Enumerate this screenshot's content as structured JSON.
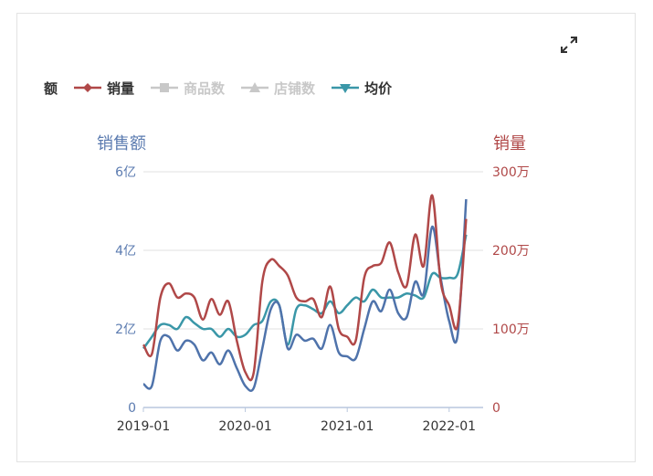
{
  "legend": {
    "partial_label": "额",
    "items": [
      {
        "label": "销量",
        "color": "#b04848",
        "active": true
      },
      {
        "label": "商品数",
        "color": "#c8c8c8",
        "active": false
      },
      {
        "label": "店铺数",
        "color": "#c8c8c8",
        "active": false
      },
      {
        "label": "均价",
        "color": "#3a97a8",
        "active": true
      }
    ]
  },
  "expand_icon": "expand-icon",
  "colors": {
    "sales_amount": "#4f73ab",
    "sales_volume": "#b04848",
    "avg_price": "#3a97a8",
    "grid": "#e0e0e0",
    "left_axis": "#5b7bb0",
    "right_axis": "#b04848"
  },
  "chart_data": {
    "type": "line",
    "ylabel": "销售额",
    "y2label": "销量",
    "xlim": [
      0,
      40
    ],
    "ylim": [
      0,
      6
    ],
    "y2lim": [
      0,
      300
    ],
    "x_ticks": [
      {
        "x": 0,
        "label": "2019-01"
      },
      {
        "x": 12,
        "label": "2020-01"
      },
      {
        "x": 24,
        "label": "2021-01"
      },
      {
        "x": 36,
        "label": "2022-01"
      }
    ],
    "y_ticks": [
      {
        "value": 0,
        "label": "0"
      },
      {
        "value": 2,
        "label": "2亿"
      },
      {
        "value": 4,
        "label": "4亿"
      },
      {
        "value": 6,
        "label": "6亿"
      }
    ],
    "y2_ticks": [
      {
        "value": 0,
        "label": "0"
      },
      {
        "value": 100,
        "label": "100万"
      },
      {
        "value": 200,
        "label": "200万"
      },
      {
        "value": 300,
        "label": "300万"
      }
    ],
    "grid": true,
    "series": [
      {
        "key": "sales_amount",
        "axis": "left",
        "values": [
          0.6,
          0.55,
          1.7,
          1.8,
          1.45,
          1.7,
          1.6,
          1.2,
          1.4,
          1.1,
          1.45,
          1.0,
          0.55,
          0.5,
          1.5,
          2.5,
          2.6,
          1.5,
          1.85,
          1.7,
          1.75,
          1.5,
          2.1,
          1.4,
          1.3,
          1.25,
          2.0,
          2.7,
          2.45,
          3.0,
          2.4,
          2.3,
          3.2,
          2.9,
          4.6,
          3.3,
          2.2,
          1.85,
          5.3
        ]
      },
      {
        "key": "sales_volume",
        "axis": "right",
        "values": [
          80,
          68,
          140,
          158,
          140,
          145,
          140,
          112,
          138,
          118,
          135,
          85,
          45,
          45,
          160,
          188,
          180,
          168,
          140,
          135,
          138,
          115,
          154,
          100,
          90,
          85,
          165,
          180,
          184,
          210,
          172,
          155,
          220,
          180,
          270,
          160,
          130,
          105,
          240
        ]
      },
      {
        "key": "avg_price",
        "axis": "left",
        "values": [
          1.5,
          1.8,
          2.1,
          2.1,
          2.0,
          2.3,
          2.15,
          2.0,
          2.0,
          1.8,
          2.0,
          1.8,
          1.85,
          2.1,
          2.2,
          2.7,
          2.6,
          1.6,
          2.5,
          2.6,
          2.5,
          2.4,
          2.7,
          2.4,
          2.6,
          2.8,
          2.7,
          3.0,
          2.8,
          2.8,
          2.8,
          2.9,
          2.85,
          2.8,
          3.4,
          3.3,
          3.3,
          3.4,
          4.4
        ]
      }
    ]
  }
}
